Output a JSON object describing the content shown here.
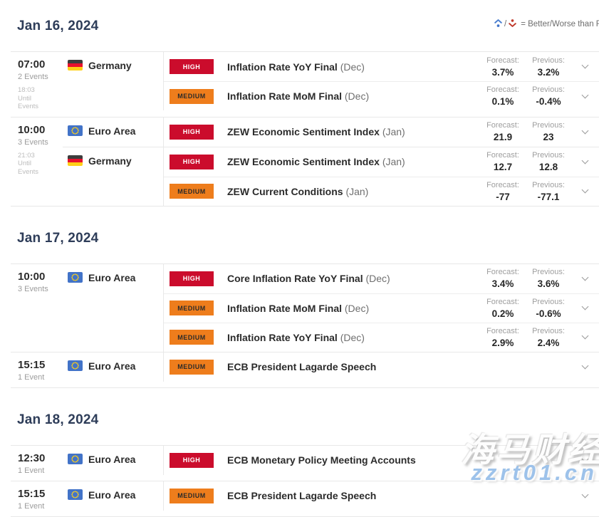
{
  "legend": {
    "separator": "/",
    "text": "= Better/Worse than Forecast"
  },
  "labels": {
    "forecast": "Forecast:",
    "previous": "Previous:"
  },
  "colors": {
    "heading": "#2e3d59",
    "high_bg": "#cb0c2c",
    "high_text": "#ffffff",
    "medium_bg": "#ee7d1c",
    "medium_text": "#2a2a2a",
    "better_icon": "#4a7fd0",
    "worse_icon": "#c0392b",
    "watermark_url_color": "#9dc2ea"
  },
  "watermark": {
    "line1": "海马财经",
    "line2": "zzrt01.cn"
  },
  "days": [
    {
      "date": "Jan 16, 2024",
      "groups": [
        {
          "time": "07:00",
          "events_count": "2 Events",
          "countdown": [
            "18:03",
            "Until",
            "Events"
          ],
          "countries": [
            {
              "name": "Germany",
              "flag": "de",
              "events": [
                {
                  "importance": "HIGH",
                  "title": "Inflation Rate YoY Final",
                  "period": "(Dec)",
                  "forecast": "3.7%",
                  "previous": "3.2%"
                },
                {
                  "importance": "MEDIUM",
                  "title": "Inflation Rate MoM Final",
                  "period": "(Dec)",
                  "forecast": "0.1%",
                  "previous": "-0.4%"
                }
              ]
            }
          ]
        },
        {
          "time": "10:00",
          "events_count": "3 Events",
          "countdown": [
            "21:03",
            "Until",
            "Events"
          ],
          "countries": [
            {
              "name": "Euro Area",
              "flag": "eu",
              "events": [
                {
                  "importance": "HIGH",
                  "title": "ZEW Economic Sentiment Index",
                  "period": "(Jan)",
                  "forecast": "21.9",
                  "previous": "23"
                }
              ]
            },
            {
              "name": "Germany",
              "flag": "de",
              "events": [
                {
                  "importance": "HIGH",
                  "title": "ZEW Economic Sentiment Index",
                  "period": "(Jan)",
                  "forecast": "12.7",
                  "previous": "12.8"
                },
                {
                  "importance": "MEDIUM",
                  "title": "ZEW Current Conditions",
                  "period": "(Jan)",
                  "forecast": "-77",
                  "previous": "-77.1"
                }
              ]
            }
          ]
        }
      ]
    },
    {
      "date": "Jan 17, 2024",
      "groups": [
        {
          "time": "10:00",
          "events_count": "3 Events",
          "countdown": [],
          "countries": [
            {
              "name": "Euro Area",
              "flag": "eu",
              "events": [
                {
                  "importance": "HIGH",
                  "title": "Core Inflation Rate YoY Final",
                  "period": "(Dec)",
                  "forecast": "3.4%",
                  "previous": "3.6%"
                },
                {
                  "importance": "MEDIUM",
                  "title": "Inflation Rate MoM Final",
                  "period": "(Dec)",
                  "forecast": "0.2%",
                  "previous": "-0.6%"
                },
                {
                  "importance": "MEDIUM",
                  "title": "Inflation Rate YoY Final",
                  "period": "(Dec)",
                  "forecast": "2.9%",
                  "previous": "2.4%"
                }
              ]
            }
          ]
        },
        {
          "time": "15:15",
          "events_count": "1 Event",
          "countdown": [],
          "countries": [
            {
              "name": "Euro Area",
              "flag": "eu",
              "events": [
                {
                  "importance": "MEDIUM",
                  "title": "ECB President Lagarde Speech",
                  "period": "",
                  "forecast": "",
                  "previous": ""
                }
              ]
            }
          ]
        }
      ]
    },
    {
      "date": "Jan 18, 2024",
      "groups": [
        {
          "time": "12:30",
          "events_count": "1 Event",
          "countdown": [],
          "countries": [
            {
              "name": "Euro Area",
              "flag": "eu",
              "events": [
                {
                  "importance": "HIGH",
                  "title": "ECB Monetary Policy Meeting Accounts",
                  "period": "",
                  "forecast": "",
                  "previous": ""
                }
              ]
            }
          ]
        },
        {
          "time": "15:15",
          "events_count": "1 Event",
          "countdown": [],
          "countries": [
            {
              "name": "Euro Area",
              "flag": "eu",
              "events": [
                {
                  "importance": "MEDIUM",
                  "title": "ECB President Lagarde Speech",
                  "period": "",
                  "forecast": "",
                  "previous": ""
                }
              ]
            }
          ]
        }
      ]
    }
  ]
}
